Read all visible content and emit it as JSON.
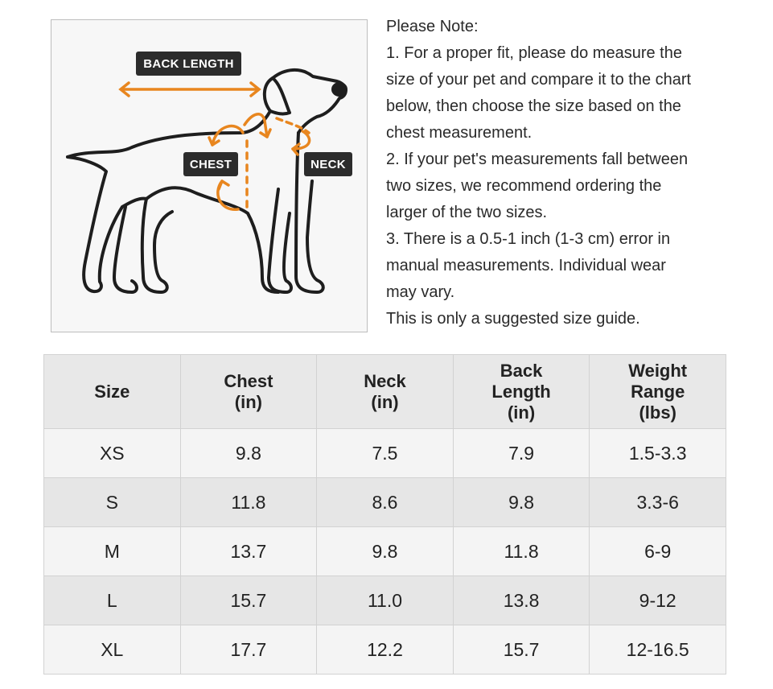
{
  "diagram": {
    "labels": {
      "back_length": "BACK LENGTH",
      "chest": "CHEST",
      "neck": "NECK"
    },
    "accent_color": "#e8861f"
  },
  "note": {
    "lines": [
      "Please Note:",
      "1. For a proper fit, please do measure the",
      "size of your pet and compare it to the chart",
      "below, then choose the size based on the",
      "chest measurement.",
      "2. If your pet's measurements fall between",
      "two sizes, we recommend ordering the",
      "larger of the two sizes.",
      "3. There is a 0.5-1 inch (1-3 cm) error in",
      "manual measurements. Individual wear",
      "may vary.",
      "This is only a suggested size guide."
    ]
  },
  "table": {
    "headers": [
      [
        "Size"
      ],
      [
        "Chest",
        "(in)"
      ],
      [
        "Neck",
        "(in)"
      ],
      [
        "Back",
        "Length",
        "(in)"
      ],
      [
        "Weight",
        "Range",
        "(lbs)"
      ]
    ],
    "rows": [
      [
        "XS",
        "9.8",
        "7.5",
        "7.9",
        "1.5-3.3"
      ],
      [
        "S",
        "11.8",
        "8.6",
        "9.8",
        "3.3-6"
      ],
      [
        "M",
        "13.7",
        "9.8",
        "11.8",
        "6-9"
      ],
      [
        "L",
        "15.7",
        "11.0",
        "13.8",
        "9-12"
      ],
      [
        "XL",
        "17.7",
        "12.2",
        "15.7",
        "12-16.5"
      ]
    ]
  }
}
